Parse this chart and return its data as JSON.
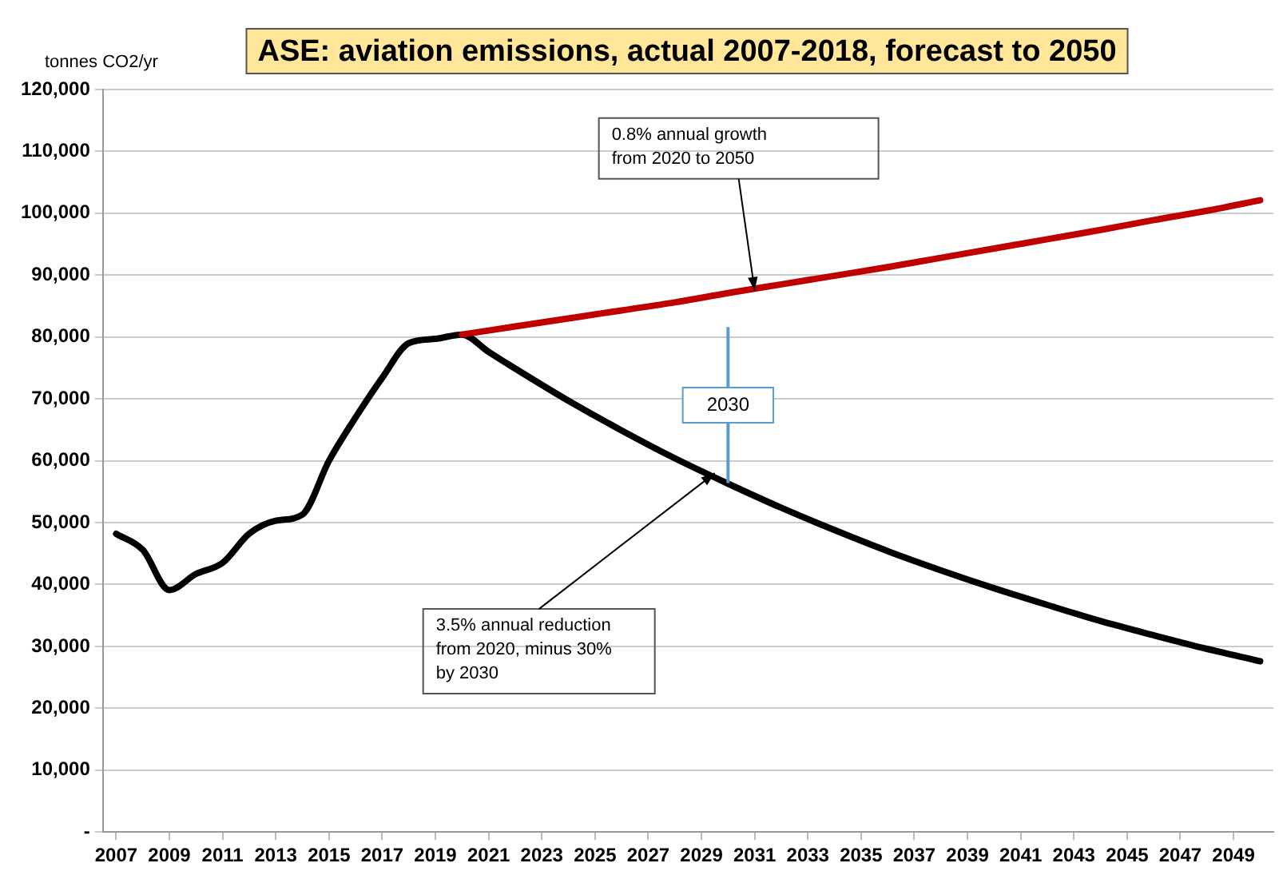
{
  "chart_data": {
    "type": "line",
    "title": "ASE: aviation emissions, actual 2007-2018, forecast to 2050",
    "ylabel": "tonnes CO2/yr",
    "xlim": [
      2006.5,
      2050.5
    ],
    "xticks": [
      2007,
      2009,
      2011,
      2013,
      2015,
      2017,
      2019,
      2021,
      2023,
      2025,
      2027,
      2029,
      2031,
      2033,
      2035,
      2037,
      2039,
      2041,
      2043,
      2045,
      2047,
      2049
    ],
    "ylim": [
      0,
      120000
    ],
    "yticks": [
      {
        "value": 0,
        "label": "-"
      },
      {
        "value": 10000,
        "label": "10,000"
      },
      {
        "value": 20000,
        "label": "20,000"
      },
      {
        "value": 30000,
        "label": "30,000"
      },
      {
        "value": 40000,
        "label": "40,000"
      },
      {
        "value": 50000,
        "label": "50,000"
      },
      {
        "value": 60000,
        "label": "60,000"
      },
      {
        "value": 70000,
        "label": "70,000"
      },
      {
        "value": 80000,
        "label": "80,000"
      },
      {
        "value": 90000,
        "label": "90,000"
      },
      {
        "value": 100000,
        "label": "100,000"
      },
      {
        "value": 110000,
        "label": "110,000"
      },
      {
        "value": 120000,
        "label": "120,000"
      }
    ],
    "grid": "y",
    "legend": false,
    "marker": "none",
    "line_style": "solid",
    "series": [
      {
        "color": "#c00000",
        "x": [
          2020,
          2022,
          2024,
          2026,
          2028,
          2030,
          2032,
          2034,
          2036,
          2038,
          2040,
          2042,
          2044,
          2046,
          2048,
          2050
        ],
        "values": [
          80400,
          81700,
          83000,
          84300,
          85600,
          87100,
          88500,
          89900,
          91300,
          92800,
          94300,
          95800,
          97300,
          98900,
          100400,
          102100
        ]
      },
      {
        "color": "#000000",
        "x": [
          2007,
          2008,
          2009,
          2010,
          2011,
          2012,
          2013,
          2014,
          2015,
          2016,
          2017,
          2018,
          2019,
          2020,
          2021,
          2022,
          2024,
          2026,
          2028,
          2030,
          2032,
          2034,
          2036,
          2038,
          2040,
          2042,
          2044,
          2046,
          2048,
          2050
        ],
        "values": [
          48200,
          45600,
          39100,
          41700,
          43500,
          48200,
          50300,
          51300,
          60000,
          67000,
          73400,
          79000,
          79700,
          80400,
          77600,
          74900,
          69700,
          64900,
          60400,
          56300,
          52400,
          48800,
          45400,
          42300,
          39400,
          36700,
          34100,
          31800,
          29600,
          27600
        ]
      }
    ],
    "ref_lines": [
      {
        "axis": "x",
        "value": 2030,
        "label": "2030",
        "color": "#5b9bd5"
      }
    ],
    "annotations": [
      {
        "text": "0.8% annual growth\nfrom 2020 to 2050",
        "x": 2031,
        "y": 87500
      },
      {
        "text": "3.5% annual reduction\nfrom 2020, minus 30%\nby 2030",
        "x": 2029.5,
        "y": 58000
      }
    ]
  }
}
